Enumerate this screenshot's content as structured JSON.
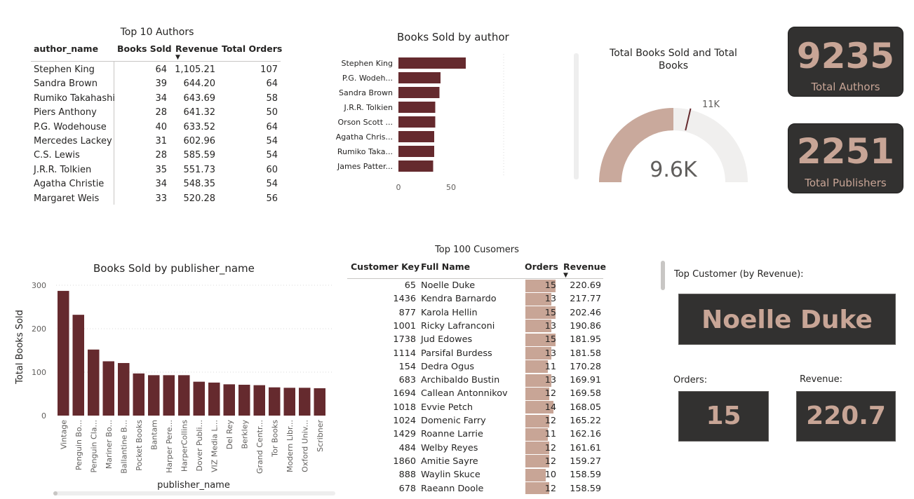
{
  "authors_table": {
    "title": "Top 10 Authors",
    "columns": [
      "author_name",
      "Books Sold",
      "Revenue",
      "Total Orders"
    ],
    "rows": [
      {
        "name": "Stephen King",
        "sold": "64",
        "revenue": "1,105.21",
        "orders": "107"
      },
      {
        "name": "Sandra Brown",
        "sold": "39",
        "revenue": "644.20",
        "orders": "64"
      },
      {
        "name": "Rumiko Takahashi",
        "sold": "34",
        "revenue": "643.69",
        "orders": "58"
      },
      {
        "name": "Piers Anthony",
        "sold": "28",
        "revenue": "641.32",
        "orders": "50"
      },
      {
        "name": "P.G. Wodehouse",
        "sold": "40",
        "revenue": "633.52",
        "orders": "64"
      },
      {
        "name": "Mercedes Lackey",
        "sold": "31",
        "revenue": "602.96",
        "orders": "54"
      },
      {
        "name": "C.S. Lewis",
        "sold": "28",
        "revenue": "585.59",
        "orders": "54"
      },
      {
        "name": "J.R.R. Tolkien",
        "sold": "35",
        "revenue": "551.73",
        "orders": "60"
      },
      {
        "name": "Agatha Christie",
        "sold": "34",
        "revenue": "548.35",
        "orders": "54"
      },
      {
        "name": "Margaret Weis",
        "sold": "33",
        "revenue": "520.28",
        "orders": "56"
      }
    ]
  },
  "author_chart": {
    "chart_data": {
      "type": "bar",
      "orientation": "horizontal",
      "title": "Books Sold by author",
      "categories": [
        "Stephen King",
        "P.G. Wodeh...",
        "Sandra Brown",
        "J.R.R. Tolkien",
        "Orson Scott ...",
        "Agatha Chris...",
        "Rumiko Taka...",
        "James Patter..."
      ],
      "values": [
        64,
        40,
        39,
        35,
        35,
        34,
        34,
        33
      ],
      "xticks": [
        "0",
        "50"
      ],
      "xlim": [
        0,
        100
      ],
      "color": "#652a2e"
    }
  },
  "gauge": {
    "title_line1": "Total Books Sold and Total",
    "title_line2": "Books",
    "value_label": "9.6K",
    "target_label": "11K",
    "value": 9600,
    "target": 11000,
    "max": 19200,
    "fill_color": "#c9a99c",
    "track_color": "#f0efee",
    "target_color": "#652a2e"
  },
  "kpi_authors": {
    "value": "9235",
    "label": "Total Authors"
  },
  "kpi_publishers": {
    "value": "2251",
    "label": "Total Publishers"
  },
  "publisher_chart": {
    "chart_data": {
      "type": "bar",
      "title": "Books Sold by publisher_name",
      "xlabel": "publisher_name",
      "ylabel": "Total Books Sold",
      "categories": [
        "Vintage",
        "Penguin Bo...",
        "Penguin Cla...",
        "Mariner Bo...",
        "Ballantine B...",
        "Pocket Books",
        "Bantam",
        "Harper Pere...",
        "HarperCollins",
        "Dover Publi...",
        "VIZ Media L...",
        "Del Rey",
        "Berkley",
        "Grand Centr...",
        "Tor Books",
        "Modern Libr...",
        "Oxford Univ...",
        "Scribner"
      ],
      "values": [
        287,
        232,
        152,
        125,
        121,
        97,
        93,
        93,
        93,
        78,
        76,
        72,
        71,
        70,
        65,
        64,
        64,
        63
      ],
      "yticks": [
        0,
        100,
        200,
        300
      ],
      "ylim": [
        0,
        300
      ],
      "color": "#652a2e"
    }
  },
  "customers_table": {
    "title": "Top 100 Cusomers",
    "columns": [
      "Customer Key",
      "Full Name",
      "Orders",
      "Revenue"
    ],
    "rows": [
      {
        "key": "65",
        "name": "Noelle Duke",
        "orders": "15",
        "revenue": "220.69",
        "o": 15
      },
      {
        "key": "1436",
        "name": "Kendra Barnardo",
        "orders": "13",
        "revenue": "217.77",
        "o": 13
      },
      {
        "key": "877",
        "name": "Karola Hellin",
        "orders": "15",
        "revenue": "202.46",
        "o": 15
      },
      {
        "key": "1001",
        "name": "Ricky Lafranconi",
        "orders": "13",
        "revenue": "190.86",
        "o": 13
      },
      {
        "key": "1738",
        "name": "Jud Edowes",
        "orders": "15",
        "revenue": "181.95",
        "o": 15
      },
      {
        "key": "1114",
        "name": "Parsifal Burdess",
        "orders": "13",
        "revenue": "181.58",
        "o": 13
      },
      {
        "key": "154",
        "name": "Dedra Ogus",
        "orders": "11",
        "revenue": "170.28",
        "o": 11
      },
      {
        "key": "683",
        "name": "Archibaldo Bustin",
        "orders": "13",
        "revenue": "169.91",
        "o": 13
      },
      {
        "key": "1694",
        "name": "Callean Antonnikov",
        "orders": "12",
        "revenue": "169.58",
        "o": 12
      },
      {
        "key": "1018",
        "name": "Evvie Petch",
        "orders": "14",
        "revenue": "168.05",
        "o": 14
      },
      {
        "key": "1024",
        "name": "Domenic Farry",
        "orders": "12",
        "revenue": "165.22",
        "o": 12
      },
      {
        "key": "1429",
        "name": "Roanne Larrie",
        "orders": "11",
        "revenue": "162.16",
        "o": 11
      },
      {
        "key": "484",
        "name": "Welby Reyes",
        "orders": "12",
        "revenue": "161.61",
        "o": 12
      },
      {
        "key": "1860",
        "name": "Amitie Sayre",
        "orders": "12",
        "revenue": "159.27",
        "o": 12
      },
      {
        "key": "888",
        "name": "Waylin Skuce",
        "orders": "10",
        "revenue": "158.59",
        "o": 10
      },
      {
        "key": "678",
        "name": "Raeann Doole",
        "orders": "12",
        "revenue": "158.59",
        "o": 12
      }
    ]
  },
  "top_customer": {
    "label": "Top Customer (by Revenue):",
    "name": "Noelle Duke",
    "orders_label": "Orders:",
    "orders": "15",
    "revenue_label": "Revenue:",
    "revenue": "220.7"
  }
}
